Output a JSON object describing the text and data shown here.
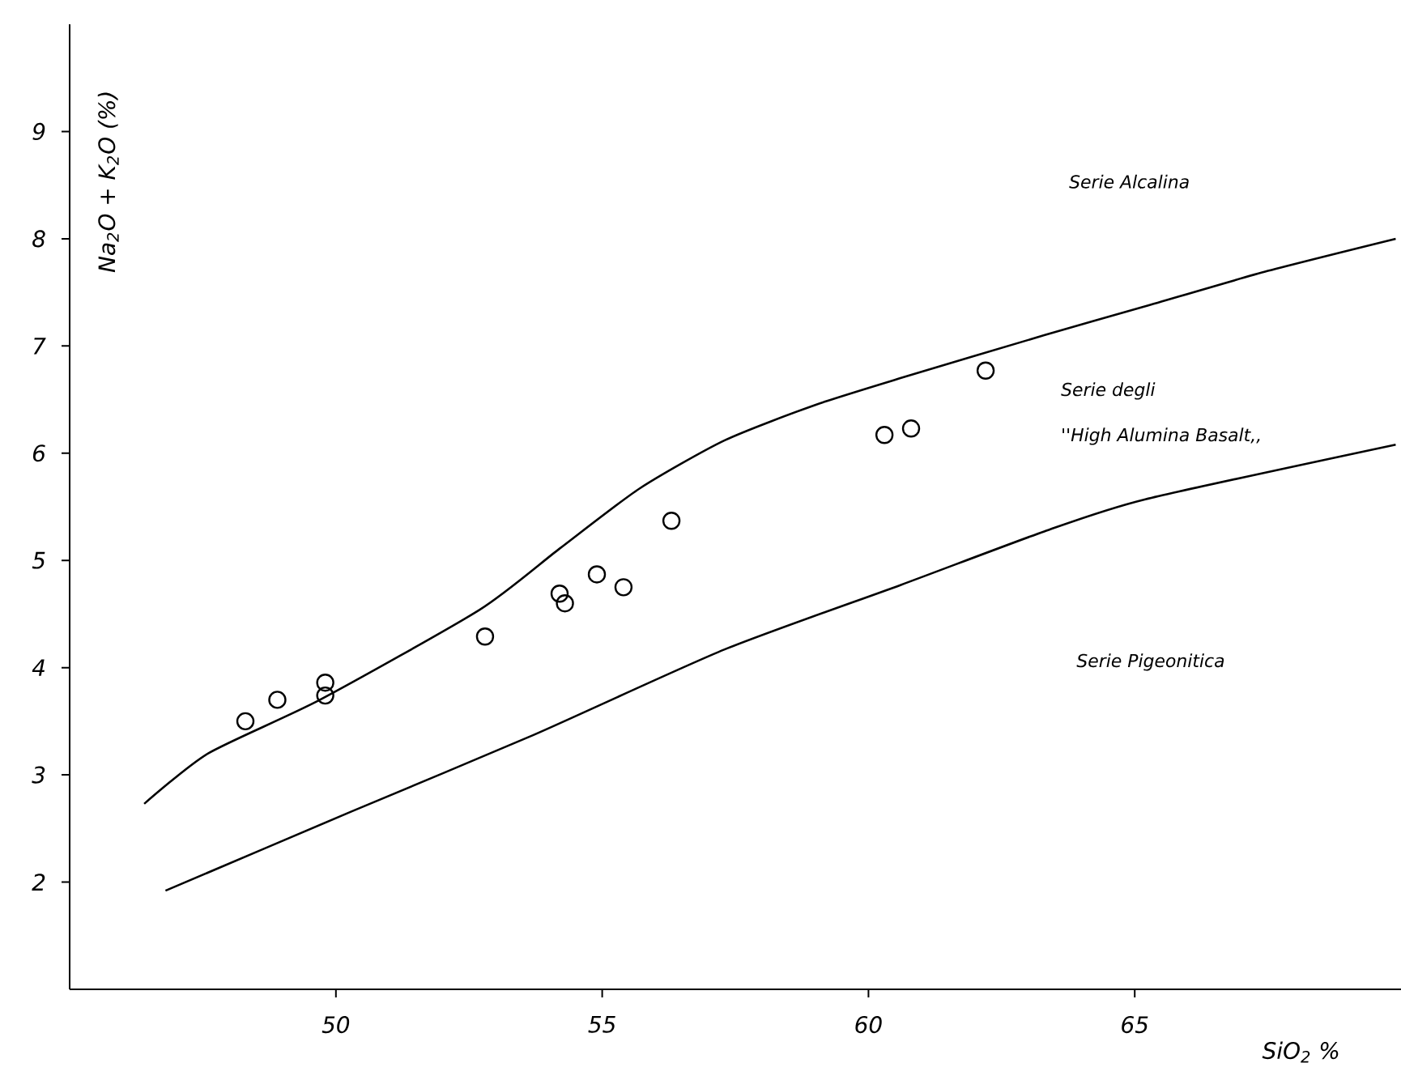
{
  "chart_data": {
    "type": "scatter",
    "xlabel": "SiO$_{2}$ %",
    "ylabel": "Na$_{2}$O + K$_{2}$O (%)",
    "xlim": [
      45,
      70
    ],
    "ylim": [
      1,
      10
    ],
    "xticks": [
      50,
      55,
      60,
      65
    ],
    "yticks": [
      2,
      3,
      4,
      5,
      6,
      7,
      8,
      9
    ],
    "series": [
      {
        "marker": "circle",
        "color": "#000000",
        "x": [
          48.3,
          48.9,
          49.8,
          49.8,
          52.8,
          54.2,
          54.3,
          54.9,
          55.4,
          56.3,
          60.3,
          60.8,
          62.2
        ],
        "values": [
          3.5,
          3.7,
          3.86,
          3.74,
          4.29,
          4.69,
          4.6,
          4.87,
          4.75,
          5.37,
          6.17,
          6.23,
          6.77
        ]
      },
      {
        "type": "line",
        "marker": "none",
        "color": "#000000",
        "x": [
          46.4,
          47.6,
          49.7,
          52.7,
          54.2,
          55.7,
          57.3,
          59.0,
          60.6,
          63.3,
          65.2,
          67.5,
          69.9
        ],
        "values": [
          2.73,
          3.2,
          3.7,
          4.54,
          5.11,
          5.67,
          6.12,
          6.45,
          6.7,
          7.1,
          7.37,
          7.7,
          8.0
        ]
      },
      {
        "type": "line",
        "marker": "none",
        "color": "#000000",
        "x": [
          46.8,
          50.3,
          53.7,
          57.3,
          60.6,
          63.3,
          65.2,
          69.9
        ],
        "values": [
          1.92,
          2.66,
          3.37,
          4.17,
          4.77,
          5.27,
          5.57,
          6.08
        ]
      }
    ],
    "annotations": [
      "Serie Alcalina",
      "Serie degli",
      "''High Alumina Basalt,,",
      "Serie  Pigeonitica"
    ]
  }
}
